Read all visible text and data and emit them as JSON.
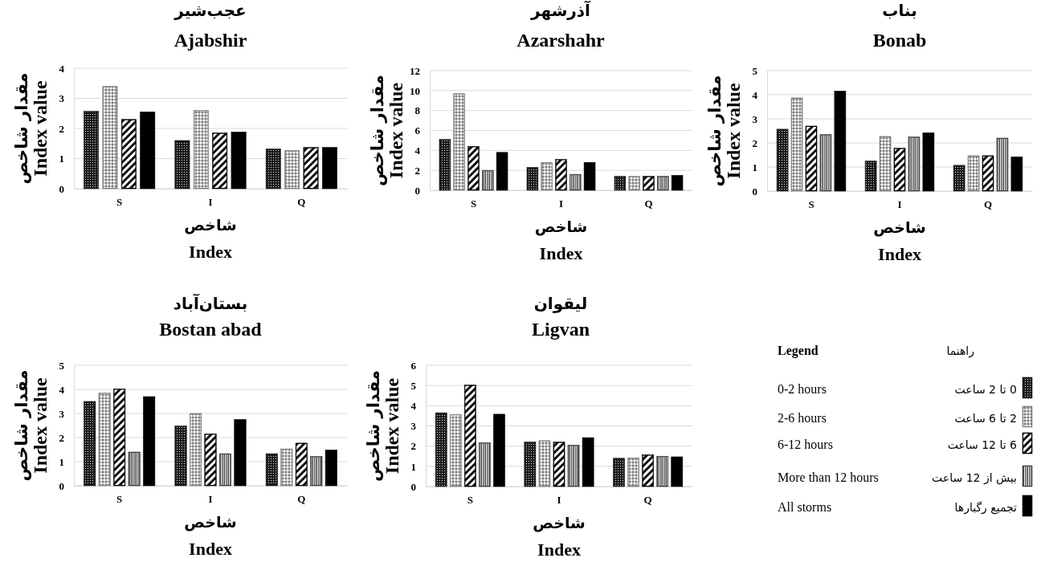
{
  "chart_data": [
    {
      "type": "bar",
      "title": "عجب‌شیر",
      "subtitle": "Ajabshir",
      "xlabel": "شاخص\nIndex",
      "ylabel": "مقدار شاخص\nIndex value",
      "categories": [
        "S",
        "I",
        "Q"
      ],
      "ylim": [
        0,
        4
      ],
      "yticks": [
        0,
        1,
        2,
        3,
        4
      ],
      "grid": "y",
      "legend": false,
      "series": [
        {
          "color": "#1a1a1a",
          "values": [
            2.57,
            1.6,
            1.32
          ]
        },
        {
          "color": "#7f7f7f",
          "values": [
            3.4,
            2.6,
            1.27
          ]
        },
        {
          "color": "#000000",
          "values": [
            2.3,
            1.85,
            1.37
          ]
        },
        {
          "color": "#000001",
          "values": [
            2.55,
            1.88,
            1.37
          ]
        }
      ]
    },
    {
      "type": "bar",
      "title": "آذرشهر",
      "subtitle": "Azarshahr",
      "xlabel": "شاخص\nIndex",
      "ylabel": "مقدار شاخص\nIndex value",
      "categories": [
        "S",
        "I",
        "Q"
      ],
      "ylim": [
        0,
        12
      ],
      "yticks": [
        0,
        2,
        4,
        6,
        8,
        10,
        12
      ],
      "grid": "y",
      "legend": false,
      "series": [
        {
          "color": "#1a1a1a",
          "values": [
            5.1,
            2.3,
            1.4
          ]
        },
        {
          "color": "#7f7f7f",
          "values": [
            9.7,
            2.8,
            1.4
          ]
        },
        {
          "color": "#000000",
          "values": [
            4.4,
            3.1,
            1.4
          ]
        },
        {
          "color": "#404040",
          "values": [
            2.0,
            1.6,
            1.4
          ]
        },
        {
          "color": "#000001",
          "values": [
            3.8,
            2.8,
            1.5
          ]
        }
      ]
    },
    {
      "type": "bar",
      "title": "بناب",
      "subtitle": "Bonab",
      "xlabel": "شاخص\nIndex",
      "ylabel": "مقدار شاخص\nIndex value",
      "categories": [
        "S",
        "I",
        "Q"
      ],
      "ylim": [
        0,
        5
      ],
      "yticks": [
        0,
        1,
        2,
        3,
        4,
        5
      ],
      "grid": "y",
      "legend": false,
      "series": [
        {
          "color": "#1a1a1a",
          "values": [
            2.57,
            1.25,
            1.07
          ]
        },
        {
          "color": "#7f7f7f",
          "values": [
            3.87,
            2.27,
            1.47
          ]
        },
        {
          "color": "#000000",
          "values": [
            2.7,
            1.78,
            1.47
          ]
        },
        {
          "color": "#404040",
          "values": [
            2.35,
            2.25,
            2.2
          ]
        },
        {
          "color": "#000001",
          "values": [
            4.15,
            2.42,
            1.42
          ]
        }
      ]
    },
    {
      "type": "bar",
      "title": "بستان‌آباد",
      "subtitle": "Bostan abad",
      "xlabel": "شاخص\nIndex",
      "ylabel": "مقدار شاخص\nIndex value",
      "categories": [
        "S",
        "I",
        "Q"
      ],
      "ylim": [
        0,
        5
      ],
      "yticks": [
        0,
        1,
        2,
        3,
        4,
        5
      ],
      "grid": "y",
      "legend": false,
      "series": [
        {
          "color": "#1a1a1a",
          "values": [
            3.5,
            2.48,
            1.33
          ]
        },
        {
          "color": "#7f7f7f",
          "values": [
            3.85,
            3.0,
            1.53
          ]
        },
        {
          "color": "#000000",
          "values": [
            4.02,
            2.15,
            1.77
          ]
        },
        {
          "color": "#404040",
          "values": [
            1.4,
            1.33,
            1.22
          ]
        },
        {
          "color": "#000001",
          "values": [
            3.7,
            2.75,
            1.48
          ]
        }
      ]
    },
    {
      "type": "bar",
      "title": "لیقوان",
      "subtitle": "Ligvan",
      "xlabel": "شاخص\nIndex",
      "ylabel": "مقدار شاخص\nIndex value",
      "categories": [
        "S",
        "I",
        "Q"
      ],
      "ylim": [
        0,
        6
      ],
      "yticks": [
        0,
        1,
        2,
        3,
        4,
        5,
        6
      ],
      "grid": "y",
      "legend": "right",
      "legend_title": "Legend",
      "annotations": [
        "راهنما",
        "0-2 hours",
        "2-6 hours",
        "6-12 hours",
        "More than 12 hours",
        "All storms"
      ],
      "series": [
        {
          "name": "0 تا 2 ساعت",
          "color": "#1a1a1a",
          "values": [
            3.65,
            2.2,
            1.4
          ]
        },
        {
          "name": "2 تا 6 ساعت",
          "color": "#7f7f7f",
          "values": [
            3.57,
            2.27,
            1.42
          ]
        },
        {
          "name": "6 تا 12 ساعت",
          "color": "#000000",
          "values": [
            5.02,
            2.2,
            1.57
          ]
        },
        {
          "name": "بیش از 12 ساعت",
          "color": "#404040",
          "values": [
            2.17,
            2.05,
            1.5
          ]
        },
        {
          "name": "تجمیع رگبارها",
          "color": "#000001",
          "values": [
            3.58,
            2.42,
            1.47
          ]
        }
      ]
    }
  ]
}
